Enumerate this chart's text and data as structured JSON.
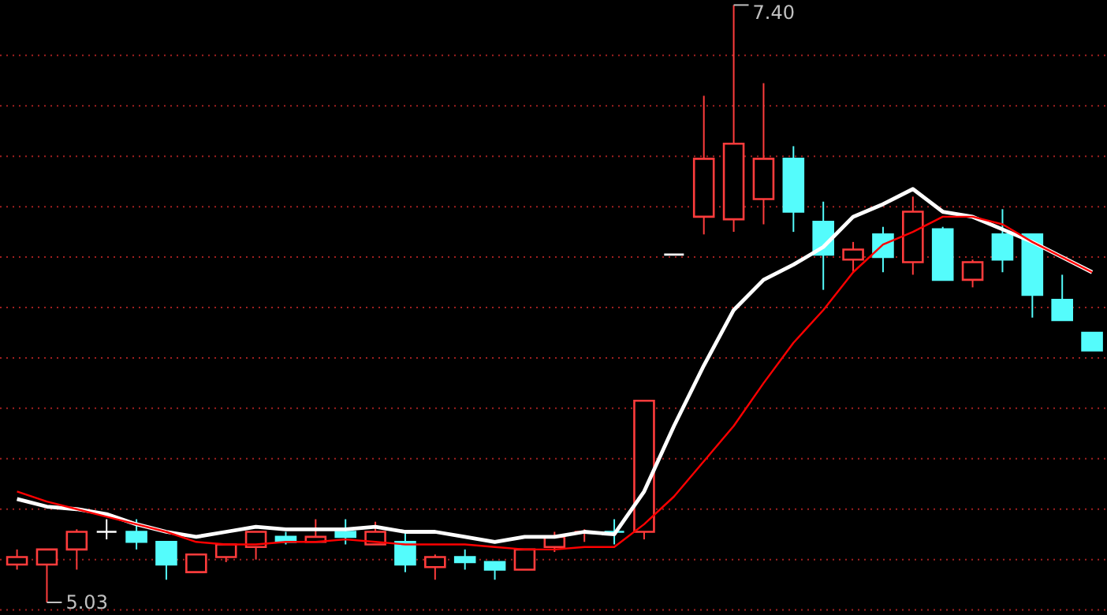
{
  "chart_data": {
    "type": "candlestick",
    "categories": [
      null,
      null,
      null,
      null,
      null,
      null,
      null,
      null,
      null,
      null,
      null,
      null,
      null,
      null,
      null,
      null,
      null,
      null,
      null,
      null,
      null,
      null,
      null,
      null,
      null,
      null,
      null,
      null,
      null,
      null,
      null,
      null,
      null,
      null,
      null,
      null,
      null
    ],
    "ohlc": [
      [
        5.18,
        5.24,
        5.16,
        5.21
      ],
      [
        5.18,
        5.24,
        5.03,
        5.24
      ],
      [
        5.24,
        5.32,
        5.16,
        5.31
      ],
      [
        5.31,
        5.36,
        5.28,
        5.31
      ],
      [
        5.31,
        5.36,
        5.24,
        5.27
      ],
      [
        5.27,
        5.27,
        5.12,
        5.18
      ],
      [
        5.15,
        5.22,
        5.15,
        5.22
      ],
      [
        5.21,
        5.26,
        5.19,
        5.26
      ],
      [
        5.25,
        5.31,
        5.2,
        5.31
      ],
      [
        5.29,
        5.31,
        5.26,
        5.27
      ],
      [
        5.27,
        5.36,
        5.27,
        5.29
      ],
      [
        5.31,
        5.36,
        5.26,
        5.29
      ],
      [
        5.26,
        5.35,
        5.26,
        5.31
      ],
      [
        5.27,
        5.31,
        5.15,
        5.18
      ],
      [
        5.17,
        5.22,
        5.12,
        5.21
      ],
      [
        5.21,
        5.24,
        5.16,
        5.19
      ],
      [
        5.19,
        5.19,
        5.12,
        5.16
      ],
      [
        5.16,
        5.24,
        5.16,
        5.24
      ],
      [
        5.25,
        5.31,
        5.23,
        5.29
      ],
      [
        5.31,
        5.32,
        5.27,
        5.31
      ],
      [
        5.31,
        5.36,
        5.26,
        5.31
      ],
      [
        5.31,
        5.83,
        5.28,
        5.83
      ],
      [
        6.41,
        6.41,
        6.41,
        6.41
      ],
      [
        6.56,
        7.04,
        6.49,
        6.79
      ],
      [
        6.55,
        7.4,
        6.5,
        6.85
      ],
      [
        6.63,
        7.09,
        6.53,
        6.79
      ],
      [
        6.79,
        6.84,
        6.5,
        6.58
      ],
      [
        6.54,
        6.62,
        6.27,
        6.41
      ],
      [
        6.39,
        6.46,
        6.34,
        6.43
      ],
      [
        6.49,
        6.52,
        6.34,
        6.4
      ],
      [
        6.38,
        6.64,
        6.33,
        6.58
      ],
      [
        6.51,
        6.52,
        6.31,
        6.31
      ],
      [
        6.31,
        6.39,
        6.28,
        6.38
      ],
      [
        6.49,
        6.59,
        6.34,
        6.39
      ],
      [
        6.49,
        6.49,
        6.16,
        6.25
      ],
      [
        6.23,
        6.33,
        6.15,
        6.15
      ],
      [
        6.1,
        6.1,
        6.03,
        6.03
      ]
    ],
    "colors": [
      "#ff3c3c",
      "#ff3c3c",
      "#ff3c3c",
      "#ffffff",
      "#54fcfc",
      "#54fcfc",
      "#ff3c3c",
      "#ff3c3c",
      "#ff3c3c",
      "#54fcfc",
      "#ff3c3c",
      "#54fcfc",
      "#ff3c3c",
      "#54fcfc",
      "#ff3c3c",
      "#54fcfc",
      "#54fcfc",
      "#ff3c3c",
      "#ff3c3c",
      "#ff3c3c",
      "#54fcfc",
      "#ff3c3c",
      "#ffffff",
      "#ff3c3c",
      "#ff3c3c",
      "#ff3c3c",
      "#54fcfc",
      "#54fcfc",
      "#ff3c3c",
      "#54fcfc",
      "#ff3c3c",
      "#54fcfc",
      "#ff3c3c",
      "#54fcfc",
      "#54fcfc",
      "#54fcfc",
      "#54fcfc"
    ],
    "series": [
      {
        "type": "line",
        "color": "#ffffff",
        "values": [
          5.44,
          5.41,
          5.4,
          5.38,
          5.34,
          5.31,
          5.29,
          5.31,
          5.33,
          5.32,
          5.32,
          5.32,
          5.33,
          5.31,
          5.31,
          5.29,
          5.27,
          5.29,
          5.29,
          5.31,
          5.3,
          5.47,
          5.73,
          5.97,
          6.19,
          6.31,
          6.37,
          6.44,
          6.56,
          6.61,
          6.67,
          6.58,
          6.56,
          6.51,
          6.46,
          6.4,
          6.34
        ]
      },
      {
        "type": "line",
        "color": "#ff0000",
        "values": [
          5.47,
          5.43,
          5.4,
          5.37,
          5.34,
          5.31,
          5.27,
          5.26,
          5.26,
          5.27,
          5.27,
          5.28,
          5.27,
          5.26,
          5.26,
          5.26,
          5.25,
          5.24,
          5.24,
          5.25,
          5.25,
          5.34,
          5.45,
          5.59,
          5.73,
          5.9,
          6.06,
          6.19,
          6.34,
          6.45,
          6.5,
          6.56,
          6.56,
          6.53,
          6.46,
          6.4,
          6.34
        ]
      }
    ],
    "ylim": [
      4.98,
      7.42
    ],
    "yticks": [
      {
        "value": 5.0,
        "label": null
      },
      {
        "value": 5.2,
        "label": null
      },
      {
        "value": 5.4,
        "label": null
      },
      {
        "value": 5.6,
        "label": null
      },
      {
        "value": 5.8,
        "label": null
      },
      {
        "value": 6.0,
        "label": null
      },
      {
        "value": 6.2,
        "label": null
      },
      {
        "value": 6.4,
        "label": null
      },
      {
        "value": 6.6,
        "label": null
      },
      {
        "value": 6.8,
        "label": null
      },
      {
        "value": 7.0,
        "label": null
      },
      {
        "value": 7.2,
        "label": null
      }
    ],
    "grid": "y",
    "annotations": [
      "7.40",
      "5.03"
    ]
  }
}
